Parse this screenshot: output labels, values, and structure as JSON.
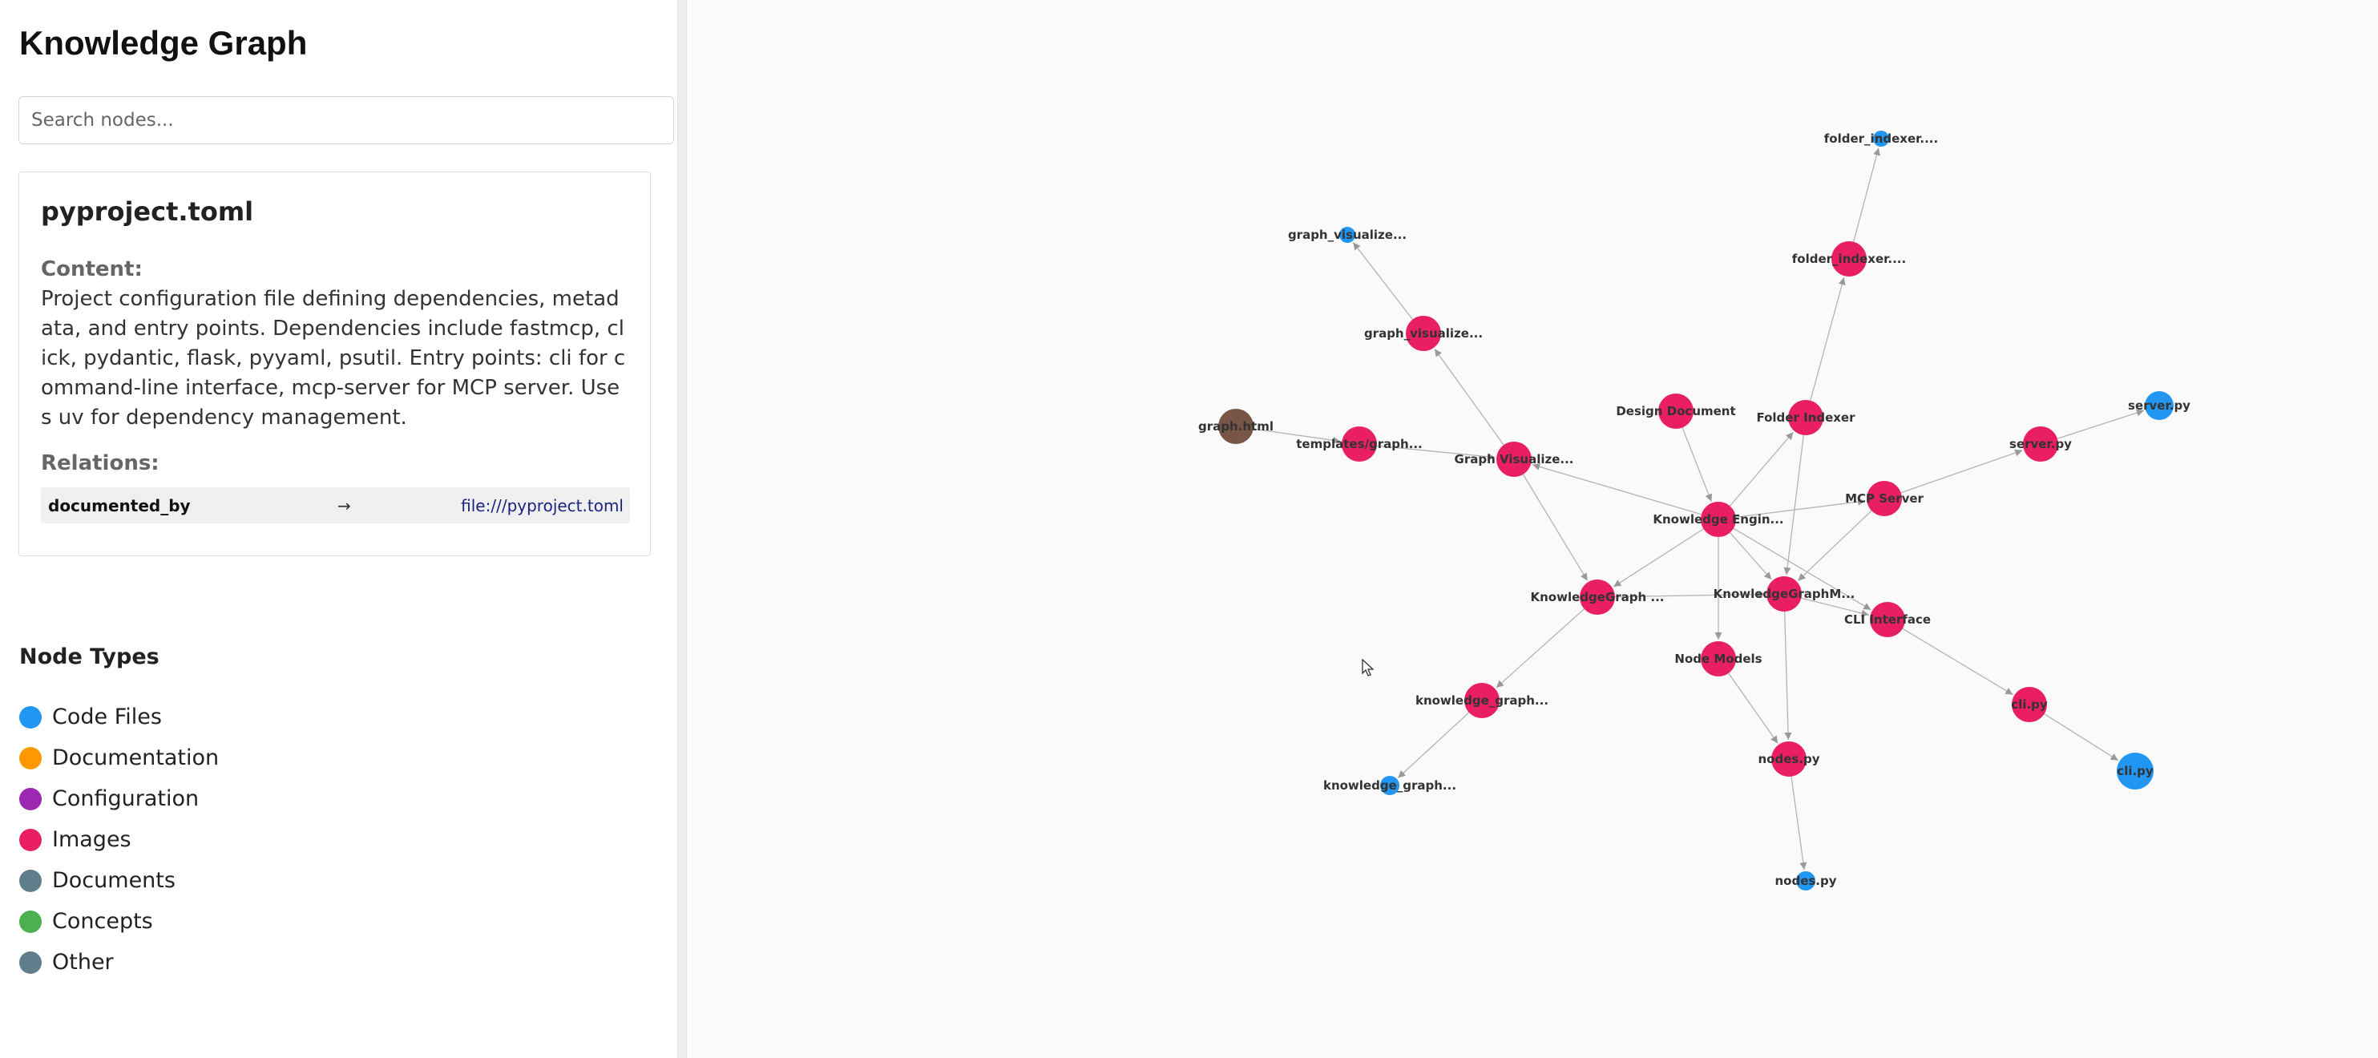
{
  "app": {
    "title": "Knowledge Graph"
  },
  "search": {
    "placeholder": "Search nodes...",
    "value": ""
  },
  "details": {
    "title": "pyproject.toml",
    "content_label": "Content:",
    "content": "Project configuration file defining dependencies, metadata, and entry points. Dependencies include fastmcp, click, pydantic, flask, pyyaml, psutil. Entry points: cli for command-line interface, mcp-server for MCP server. Uses uv for dependency management.",
    "relations_label": "Relations:",
    "relations": [
      {
        "type": "documented_by",
        "arrow": "→",
        "target": "file:///pyproject.toml"
      }
    ]
  },
  "legend": {
    "title": "Node Types",
    "items": [
      {
        "label": "Code Files",
        "color": "#2196f3"
      },
      {
        "label": "Documentation",
        "color": "#ff9800"
      },
      {
        "label": "Configuration",
        "color": "#9c27b0"
      },
      {
        "label": "Images",
        "color": "#e91e63"
      },
      {
        "label": "Documents",
        "color": "#607d8b"
      },
      {
        "label": "Concepts",
        "color": "#4caf50"
      },
      {
        "label": "Other",
        "color": "#607d8b"
      }
    ]
  },
  "graph": {
    "nodes": [
      {
        "id": "ke",
        "label": "Knowledge Engin...",
        "color": "#e91e63"
      },
      {
        "id": "dd",
        "label": "Design Document",
        "color": "#e91e63"
      },
      {
        "id": "fi",
        "label": "Folder Indexer",
        "color": "#e91e63"
      },
      {
        "id": "fi2",
        "label": "folder_indexer....",
        "color": "#e91e63"
      },
      {
        "id": "fi3",
        "label": "folder_indexer....",
        "color": "#2196f3"
      },
      {
        "id": "mcp",
        "label": "MCP Server",
        "color": "#e91e63"
      },
      {
        "id": "srv1",
        "label": "server.py",
        "color": "#e91e63"
      },
      {
        "id": "srv2",
        "label": "server.py",
        "color": "#2196f3"
      },
      {
        "id": "kgm",
        "label": "KnowledgeGraphM...",
        "color": "#e91e63"
      },
      {
        "id": "cli",
        "label": "CLI Interface",
        "color": "#e91e63"
      },
      {
        "id": "cli1",
        "label": "cli.py",
        "color": "#e91e63"
      },
      {
        "id": "cli2",
        "label": "cli.py",
        "color": "#2196f3"
      },
      {
        "id": "nm",
        "label": "Node Models",
        "color": "#e91e63"
      },
      {
        "id": "np1",
        "label": "nodes.py",
        "color": "#e91e63"
      },
      {
        "id": "np2",
        "label": "nodes.py",
        "color": "#2196f3"
      },
      {
        "id": "kg",
        "label": "KnowledgeGraph ...",
        "color": "#e91e63"
      },
      {
        "id": "kgr1",
        "label": "knowledge_graph...",
        "color": "#e91e63"
      },
      {
        "id": "kgr2",
        "label": "knowledge_graph...",
        "color": "#2196f3"
      },
      {
        "id": "gv",
        "label": "Graph Visualize...",
        "color": "#e91e63"
      },
      {
        "id": "gv2",
        "label": "graph_visualize...",
        "color": "#e91e63"
      },
      {
        "id": "gv3",
        "label": "graph_visualize...",
        "color": "#2196f3"
      },
      {
        "id": "tpl",
        "label": "templates/graph...",
        "color": "#e91e63"
      },
      {
        "id": "gh",
        "label": "graph.html",
        "color": "#795548"
      }
    ],
    "edges": [
      [
        "dd",
        "ke"
      ],
      [
        "ke",
        "fi"
      ],
      [
        "ke",
        "gv"
      ],
      [
        "ke",
        "kg"
      ],
      [
        "ke",
        "kgm"
      ],
      [
        "ke",
        "cli"
      ],
      [
        "ke",
        "nm"
      ],
      [
        "ke",
        "mcp"
      ],
      [
        "fi",
        "fi2"
      ],
      [
        "fi2",
        "fi3"
      ],
      [
        "fi",
        "kgm"
      ],
      [
        "mcp",
        "srv1"
      ],
      [
        "srv1",
        "srv2"
      ],
      [
        "mcp",
        "kgm"
      ],
      [
        "kgm",
        "cli"
      ],
      [
        "cli",
        "cli1"
      ],
      [
        "cli1",
        "cli2"
      ],
      [
        "kg",
        "kgm"
      ],
      [
        "kgm",
        "np1"
      ],
      [
        "nm",
        "np1"
      ],
      [
        "np1",
        "np2"
      ],
      [
        "kg",
        "kgr1"
      ],
      [
        "kgr1",
        "kgr2"
      ],
      [
        "gv",
        "kg"
      ],
      [
        "gv",
        "gv2"
      ],
      [
        "gv2",
        "gv3"
      ],
      [
        "tpl",
        "gv"
      ],
      [
        "gh",
        "tpl"
      ]
    ]
  }
}
